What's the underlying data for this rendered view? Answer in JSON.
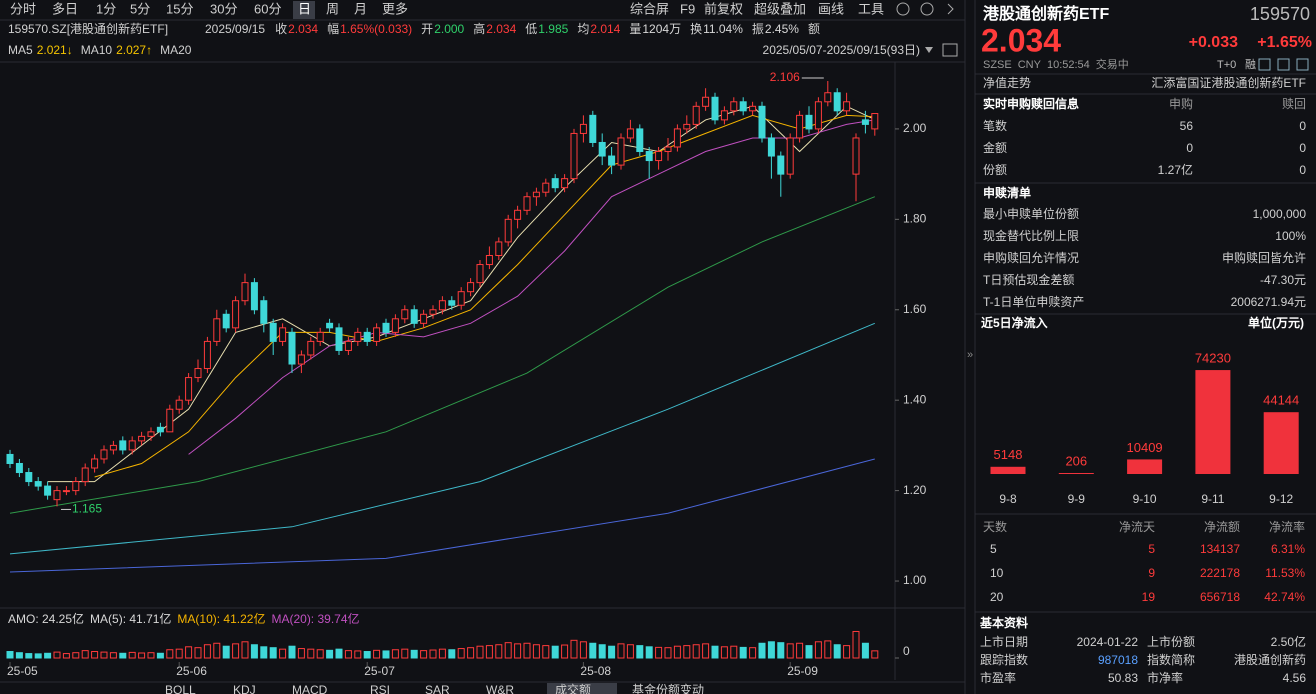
{
  "toolbar": {
    "periods": [
      "分时",
      "多日",
      "1分",
      "5分",
      "15分",
      "30分",
      "60分",
      "日",
      "周",
      "月",
      "更多"
    ],
    "active": "日",
    "tools": [
      "综合屏",
      "F9",
      "前复权",
      "超级叠加",
      "画线",
      "工具"
    ]
  },
  "info": {
    "code": "159570.SZ[港股通创新药ETF]",
    "date": "2025/09/15",
    "fields": [
      {
        "label": "收",
        "value": "2.034",
        "color": "#ff3b3b"
      },
      {
        "label": "幅",
        "value": "1.65%(0.033)",
        "color": "#ff3b3b"
      },
      {
        "label": "开",
        "value": "2.000",
        "color": "#2fd06a"
      },
      {
        "label": "高",
        "value": "2.034",
        "color": "#ff3b3b"
      },
      {
        "label": "低",
        "value": "1.985",
        "color": "#2fd06a"
      },
      {
        "label": "均",
        "value": "2.014",
        "color": "#ff3b3b"
      },
      {
        "label": "量",
        "value": "1204万",
        "color": "#d8d8d8"
      },
      {
        "label": "换",
        "value": "11.04%",
        "color": "#d8d8d8"
      },
      {
        "label": "振",
        "value": "2.45%",
        "color": "#d8d8d8"
      },
      {
        "label": "额"
      }
    ]
  },
  "chart_data": [
    {
      "type": "candlestick",
      "range": "2025/05/07-2025/09/15(93日)",
      "ylim": [
        0.947,
        2.148
      ],
      "yticks": [
        {
          "value": 1,
          "label": "1.00"
        },
        {
          "value": 1.2,
          "label": "1.20"
        },
        {
          "value": 1.4,
          "label": "1.40"
        },
        {
          "value": 1.6,
          "label": "1.60"
        },
        {
          "value": 1.8,
          "label": "1.80"
        },
        {
          "value": 2,
          "label": "2.00"
        }
      ],
      "up_color": "#ff3b3b",
      "down_color": "#3fd8d8",
      "categories": [
        "25-05",
        null,
        null,
        null,
        null,
        null,
        null,
        null,
        null,
        null,
        null,
        null,
        null,
        null,
        null,
        null,
        null,
        null,
        "25-06",
        null,
        null,
        null,
        null,
        null,
        null,
        null,
        null,
        null,
        null,
        null,
        null,
        null,
        null,
        null,
        null,
        null,
        null,
        null,
        "25-07",
        null,
        null,
        null,
        null,
        null,
        null,
        null,
        null,
        null,
        null,
        null,
        null,
        null,
        null,
        null,
        null,
        null,
        null,
        null,
        null,
        null,
        null,
        "25-08",
        null,
        null,
        null,
        null,
        null,
        null,
        null,
        null,
        null,
        null,
        null,
        null,
        null,
        null,
        null,
        null,
        null,
        null,
        null,
        null,
        null,
        "25-09",
        null,
        null,
        null,
        null,
        null,
        null,
        null,
        null,
        null
      ],
      "candles": [
        [
          1.28,
          1.29,
          1.25,
          1.26
        ],
        [
          1.26,
          1.27,
          1.23,
          1.24
        ],
        [
          1.24,
          1.25,
          1.21,
          1.22
        ],
        [
          1.22,
          1.23,
          1.2,
          1.21
        ],
        [
          1.21,
          1.22,
          1.18,
          1.19
        ],
        [
          1.18,
          1.21,
          1.165,
          1.2
        ],
        [
          1.2,
          1.21,
          1.19,
          1.2
        ],
        [
          1.2,
          1.23,
          1.19,
          1.22
        ],
        [
          1.22,
          1.26,
          1.21,
          1.25
        ],
        [
          1.25,
          1.28,
          1.24,
          1.27
        ],
        [
          1.27,
          1.3,
          1.26,
          1.29
        ],
        [
          1.29,
          1.31,
          1.28,
          1.3
        ],
        [
          1.31,
          1.32,
          1.28,
          1.29
        ],
        [
          1.29,
          1.32,
          1.28,
          1.31
        ],
        [
          1.31,
          1.33,
          1.3,
          1.32
        ],
        [
          1.32,
          1.34,
          1.31,
          1.33
        ],
        [
          1.34,
          1.35,
          1.32,
          1.33
        ],
        [
          1.33,
          1.39,
          1.33,
          1.38
        ],
        [
          1.38,
          1.41,
          1.37,
          1.4
        ],
        [
          1.4,
          1.46,
          1.39,
          1.45
        ],
        [
          1.45,
          1.49,
          1.44,
          1.47
        ],
        [
          1.47,
          1.54,
          1.46,
          1.53
        ],
        [
          1.53,
          1.6,
          1.52,
          1.58
        ],
        [
          1.59,
          1.6,
          1.55,
          1.56
        ],
        [
          1.56,
          1.63,
          1.55,
          1.62
        ],
        [
          1.62,
          1.68,
          1.61,
          1.66
        ],
        [
          1.66,
          1.67,
          1.59,
          1.6
        ],
        [
          1.62,
          1.63,
          1.55,
          1.57
        ],
        [
          1.57,
          1.58,
          1.5,
          1.53
        ],
        [
          1.53,
          1.57,
          1.52,
          1.56
        ],
        [
          1.55,
          1.56,
          1.46,
          1.48
        ],
        [
          1.48,
          1.51,
          1.46,
          1.5
        ],
        [
          1.5,
          1.54,
          1.49,
          1.53
        ],
        [
          1.53,
          1.56,
          1.52,
          1.55
        ],
        [
          1.57,
          1.58,
          1.55,
          1.56
        ],
        [
          1.56,
          1.57,
          1.5,
          1.51
        ],
        [
          1.51,
          1.54,
          1.5,
          1.53
        ],
        [
          1.53,
          1.56,
          1.52,
          1.55
        ],
        [
          1.55,
          1.56,
          1.52,
          1.53
        ],
        [
          1.53,
          1.57,
          1.52,
          1.56
        ],
        [
          1.57,
          1.58,
          1.54,
          1.55
        ],
        [
          1.55,
          1.59,
          1.54,
          1.58
        ],
        [
          1.58,
          1.61,
          1.57,
          1.6
        ],
        [
          1.6,
          1.61,
          1.56,
          1.57
        ],
        [
          1.57,
          1.6,
          1.56,
          1.59
        ],
        [
          1.59,
          1.61,
          1.58,
          1.6
        ],
        [
          1.6,
          1.63,
          1.59,
          1.62
        ],
        [
          1.62,
          1.63,
          1.6,
          1.61
        ],
        [
          1.61,
          1.65,
          1.6,
          1.64
        ],
        [
          1.64,
          1.67,
          1.63,
          1.66
        ],
        [
          1.66,
          1.71,
          1.65,
          1.7
        ],
        [
          1.7,
          1.74,
          1.69,
          1.72
        ],
        [
          1.72,
          1.76,
          1.71,
          1.75
        ],
        [
          1.75,
          1.81,
          1.74,
          1.8
        ],
        [
          1.8,
          1.83,
          1.78,
          1.82
        ],
        [
          1.82,
          1.86,
          1.81,
          1.85
        ],
        [
          1.85,
          1.87,
          1.83,
          1.86
        ],
        [
          1.86,
          1.89,
          1.85,
          1.88
        ],
        [
          1.89,
          1.9,
          1.86,
          1.87
        ],
        [
          1.87,
          1.9,
          1.86,
          1.89
        ],
        [
          1.89,
          2,
          1.88,
          1.99
        ],
        [
          1.99,
          2.03,
          1.97,
          2.01
        ],
        [
          2.03,
          2.04,
          1.96,
          1.97
        ],
        [
          1.97,
          1.99,
          1.92,
          1.94
        ],
        [
          1.94,
          1.96,
          1.9,
          1.92
        ],
        [
          1.92,
          1.99,
          1.91,
          1.98
        ],
        [
          1.98,
          2.02,
          1.97,
          2
        ],
        [
          2,
          2.01,
          1.94,
          1.95
        ],
        [
          1.95,
          1.96,
          1.89,
          1.93
        ],
        [
          1.93,
          1.96,
          1.91,
          1.95
        ],
        [
          1.95,
          1.98,
          1.93,
          1.96
        ],
        [
          1.96,
          2.01,
          1.95,
          2
        ],
        [
          2,
          2.03,
          1.99,
          2.01
        ],
        [
          2.01,
          2.06,
          2,
          2.05
        ],
        [
          2.05,
          2.09,
          2.04,
          2.07
        ],
        [
          2.07,
          2.08,
          2.01,
          2.02
        ],
        [
          2.02,
          2.05,
          2.01,
          2.04
        ],
        [
          2.04,
          2.07,
          2.03,
          2.06
        ],
        [
          2.06,
          2.07,
          2.03,
          2.04
        ],
        [
          2.04,
          2.06,
          2.03,
          2.05
        ],
        [
          2.05,
          2.06,
          1.97,
          1.98
        ],
        [
          1.98,
          1.99,
          1.89,
          1.94
        ],
        [
          1.94,
          1.95,
          1.85,
          1.9
        ],
        [
          1.9,
          1.99,
          1.89,
          1.98
        ],
        [
          1.98,
          2.04,
          1.97,
          2.03
        ],
        [
          2.03,
          2.05,
          1.99,
          2
        ],
        [
          2,
          2.07,
          1.99,
          2.06
        ],
        [
          2.06,
          2.106,
          2.05,
          2.08
        ],
        [
          2.08,
          2.09,
          2.03,
          2.04
        ],
        [
          2.04,
          2.08,
          2.03,
          2.06
        ],
        [
          1.9,
          1.99,
          1.84,
          1.98
        ],
        [
          2.02,
          2.04,
          1.99,
          2.01
        ],
        [
          2,
          2.034,
          1.985,
          2.034
        ]
      ],
      "series": [
        {
          "name": "MA5",
          "legend_value": "2.021↓",
          "color": "#e8dfb0",
          "x": [
            4,
            9,
            14,
            19,
            24,
            29,
            34,
            39,
            44,
            49,
            54,
            59,
            64,
            69,
            74,
            79,
            84,
            89,
            92
          ],
          "values": [
            1.22,
            1.22,
            1.3,
            1.38,
            1.55,
            1.58,
            1.52,
            1.54,
            1.58,
            1.62,
            1.76,
            1.87,
            1.97,
            1.95,
            2.02,
            2.05,
            1.95,
            2.05,
            2.021
          ]
        },
        {
          "name": "MA10",
          "legend_value": "2.027↑",
          "color": "#f5b400",
          "x": [
            9,
            14,
            19,
            24,
            29,
            34,
            39,
            44,
            49,
            54,
            59,
            64,
            69,
            74,
            79,
            84,
            89,
            92
          ],
          "values": [
            1.23,
            1.26,
            1.33,
            1.45,
            1.55,
            1.55,
            1.53,
            1.56,
            1.6,
            1.7,
            1.81,
            1.92,
            1.95,
            1.99,
            2.03,
            2,
            2.03,
            2.027
          ]
        },
        {
          "name": "MA20",
          "color": "#c050c0",
          "x": [
            19,
            24,
            29,
            34,
            39,
            44,
            49,
            54,
            59,
            64,
            69,
            74,
            79,
            84,
            89,
            92
          ],
          "values": [
            1.28,
            1.36,
            1.45,
            1.52,
            1.55,
            1.54,
            1.57,
            1.63,
            1.73,
            1.85,
            1.9,
            1.95,
            1.98,
            1.98,
            2.01,
            2.02
          ]
        },
        {
          "color": "#2f9a4a",
          "x": [
            0,
            20,
            40,
            55,
            70,
            80,
            92
          ],
          "values": [
            1.15,
            1.22,
            1.33,
            1.46,
            1.65,
            1.75,
            1.85
          ]
        },
        {
          "color": "#3fb8c8",
          "x": [
            0,
            30,
            50,
            70,
            92
          ],
          "values": [
            1.06,
            1.12,
            1.22,
            1.38,
            1.57
          ]
        },
        {
          "color": "#4a66d8",
          "x": [
            0,
            40,
            70,
            92
          ],
          "values": [
            1.02,
            1.05,
            1.15,
            1.27
          ]
        }
      ],
      "volume_legend": [
        {
          "text": "AMO: 24.25亿",
          "color": "#d8d8d8"
        },
        {
          "text": "MA(5): 41.71亿",
          "color": "#d8d8d8"
        },
        {
          "text": "MA(10): 41.22亿",
          "color": "#f5b400"
        },
        {
          "text": "MA(20): 39.74亿",
          "color": "#c050c0"
        }
      ],
      "volume_ylim": [
        0,
        95
      ],
      "volume_yticks": [
        0
      ],
      "volume": [
        22,
        18,
        15,
        14,
        16,
        20,
        15,
        18,
        25,
        22,
        20,
        18,
        16,
        19,
        17,
        18,
        16,
        28,
        30,
        38,
        35,
        45,
        50,
        40,
        48,
        55,
        45,
        38,
        35,
        30,
        40,
        32,
        30,
        28,
        26,
        30,
        25,
        24,
        22,
        26,
        24,
        28,
        30,
        26,
        25,
        27,
        30,
        28,
        32,
        35,
        40,
        42,
        45,
        52,
        48,
        50,
        45,
        42,
        40,
        44,
        60,
        55,
        50,
        45,
        40,
        48,
        45,
        42,
        38,
        36,
        35,
        40,
        42,
        45,
        48,
        40,
        38,
        40,
        36,
        35,
        50,
        55,
        52,
        48,
        50,
        42,
        55,
        58,
        45,
        42,
        90,
        50,
        24.25
      ]
    },
    {
      "type": "bar",
      "title": "近5日净流入",
      "unit": "单位(万元)",
      "categories": [
        "9-8",
        "9-9",
        "9-10",
        "9-11",
        "9-12"
      ],
      "values": [
        5148,
        206,
        10409,
        74230,
        44144
      ],
      "color": "#f0323c",
      "ylim": [
        0,
        80000
      ]
    }
  ],
  "quote": {
    "name": "港股通创新药ETF",
    "code": "159570",
    "price": "2.034",
    "change": "+0.033",
    "change_pct": "+1.65%",
    "status": [
      "SZSE",
      "CNY",
      "10:52:54",
      "交易中"
    ],
    "badges": [
      "T+0",
      "融"
    ]
  },
  "nav": {
    "label": "净值走势",
    "fund": "汇添富国证港股通创新药ETF"
  },
  "realtime": {
    "title": "实时申购赎回信息",
    "columns": [
      "申购",
      "赎回"
    ],
    "rows": [
      [
        "笔数",
        "56",
        "0"
      ],
      [
        "金额",
        "0",
        "0"
      ],
      [
        "份额",
        "1.27亿",
        "0"
      ]
    ]
  },
  "list": {
    "title": "申赎清单",
    "rows": [
      [
        "最小申赎单位份额",
        "1,000,000"
      ],
      [
        "现金替代比例上限",
        "100%"
      ],
      [
        "申购赎回允许情况",
        "申购赎回皆允许"
      ],
      [
        "T日预估现金差额",
        "-47.30元"
      ],
      [
        "T-1日单位申赎资产",
        "2006271.94元"
      ]
    ]
  },
  "flow_table": {
    "header": [
      "天数",
      "净流天",
      "净流额",
      "净流率"
    ],
    "rows": [
      [
        "5",
        "5",
        "134137",
        "6.31%"
      ],
      [
        "10",
        "9",
        "222178",
        "11.53%"
      ],
      [
        "20",
        "19",
        "656718",
        "42.74%"
      ]
    ]
  },
  "basic": {
    "title": "基本资料",
    "rows": [
      [
        "上市日期",
        "2024-01-22",
        "上市份额",
        "2.50亿"
      ],
      [
        "跟踪指数",
        "987018",
        "指数简称",
        "港股通创新药"
      ],
      [
        "市盈率",
        "50.83",
        "市净率",
        "4.56"
      ]
    ]
  },
  "tabs": [
    "BOLL",
    "KDJ",
    "MACD",
    "RSI",
    "SAR",
    "W&R",
    "成交额",
    "基金份额变动"
  ]
}
